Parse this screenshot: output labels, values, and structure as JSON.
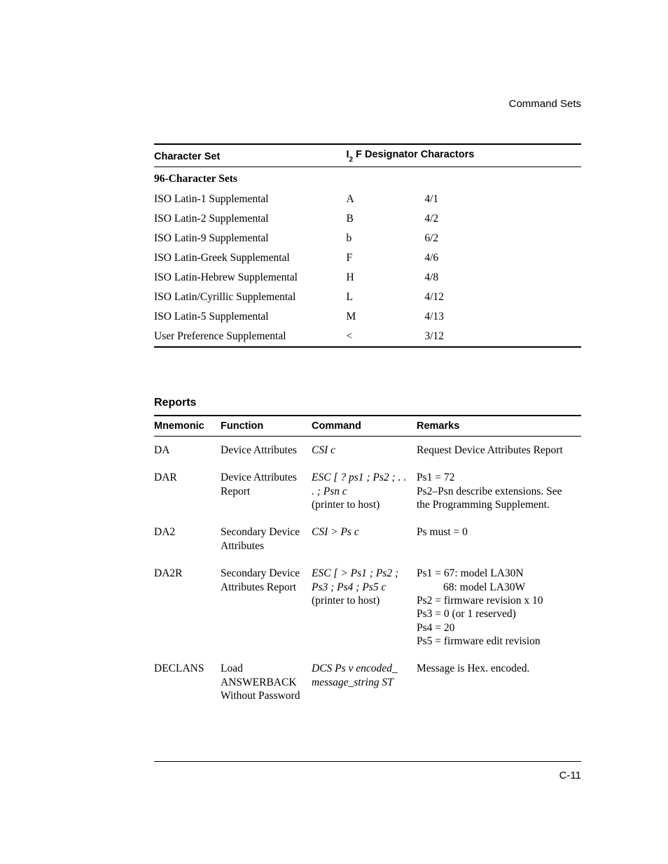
{
  "header": {
    "section": "Command Sets"
  },
  "table1": {
    "head": {
      "c1": "Character Set",
      "c2_pre": "I",
      "c2_sub": "2",
      "c2_post": " F Designator Charactors"
    },
    "subhead": "96-Character Sets",
    "rows": [
      {
        "name": "ISO Latin-1 Supplemental",
        "i2": "A",
        "f": "4/1"
      },
      {
        "name": "ISO Latin-2 Supplemental",
        "i2": "B",
        "f": "4/2"
      },
      {
        "name": "ISO Latin-9 Supplemental",
        "i2": "b",
        "f": "6/2"
      },
      {
        "name": "ISO Latin-Greek Supplemental",
        "i2": "F",
        "f": "4/6"
      },
      {
        "name": "ISO Latin-Hebrew Supplemental",
        "i2": "H",
        "f": "4/8"
      },
      {
        "name": "ISO Latin/Cyrillic Supplemental",
        "i2": "L",
        "f": "4/12"
      },
      {
        "name": "ISO Latin-5 Supplemental",
        "i2": "M",
        "f": "4/13"
      },
      {
        "name": "User Preference Supplemental",
        "i2": "<",
        "f": "3/12"
      }
    ]
  },
  "reports": {
    "title": "Reports",
    "head": {
      "c1": "Mnemonic",
      "c2": "Function",
      "c3": "Command",
      "c4": "Remarks"
    },
    "rows": [
      {
        "mnem": "DA",
        "func": "Device Attributes",
        "cmd_i": "CSI c",
        "cmd_p": "",
        "rem": "Request Device Attributes Report"
      },
      {
        "mnem": "DAR",
        "func": "Device Attributes Report",
        "cmd_i": "ESC [ ? ps1 ; Ps2 ; . . . ; Psn c",
        "cmd_p": "(printer to host)",
        "rem": "Ps1 = 72\nPs2–Psn describe extensions. See the Programming Supplement."
      },
      {
        "mnem": "DA2",
        "func": "Secondary Device Attributes",
        "cmd_i": "CSI > Ps c",
        "cmd_p": "",
        "rem": "Ps must = 0"
      },
      {
        "mnem": "DA2R",
        "func": "Secondary Device Attributes Report",
        "cmd_i": "ESC [ > Ps1 ; Ps2 ; Ps3 ; Ps4 ; Ps5 c",
        "cmd_p": "(printer to host)",
        "rem_l1": "Ps1 = 67: model LA30N",
        "rem_l2": "68: model LA30W",
        "rem_l3": "Ps2 = firmware revision x 10",
        "rem_l4": "Ps3 = 0 (or 1 reserved)",
        "rem_l5": "Ps4 = 20",
        "rem_l6": "Ps5 = firmware edit revision"
      },
      {
        "mnem": "DECLANS",
        "func": "Load ANSWERBACK Without Password",
        "cmd_i": "DCS Ps v encoded_ message_string ST",
        "cmd_p": "",
        "rem": "Message is Hex. encoded."
      }
    ]
  },
  "footer": {
    "page": "C-11"
  }
}
